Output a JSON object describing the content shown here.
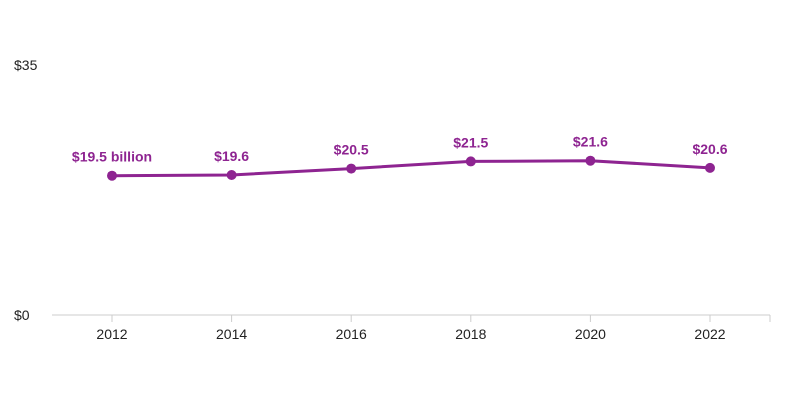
{
  "chart_data": {
    "type": "line",
    "categories": [
      "2012",
      "2014",
      "2016",
      "2018",
      "2020",
      "2022"
    ],
    "series": [
      {
        "values": [
          19.5,
          19.6,
          20.5,
          21.5,
          21.6,
          20.6
        ],
        "labels": [
          "$19.5 billion",
          "$19.6",
          "$20.5",
          "$21.5",
          "$21.6",
          "$20.6"
        ]
      }
    ],
    "y_ticks": [
      {
        "value": 0,
        "label": "$0"
      },
      {
        "value": 35,
        "label": "$35"
      }
    ],
    "title": "",
    "xlabel": "",
    "ylabel": "",
    "ylim": [
      0,
      35
    ],
    "grid": false,
    "legend": "none"
  },
  "colors": {
    "series": "#8e2491",
    "axis": "#cccccc",
    "text": "#222222"
  }
}
